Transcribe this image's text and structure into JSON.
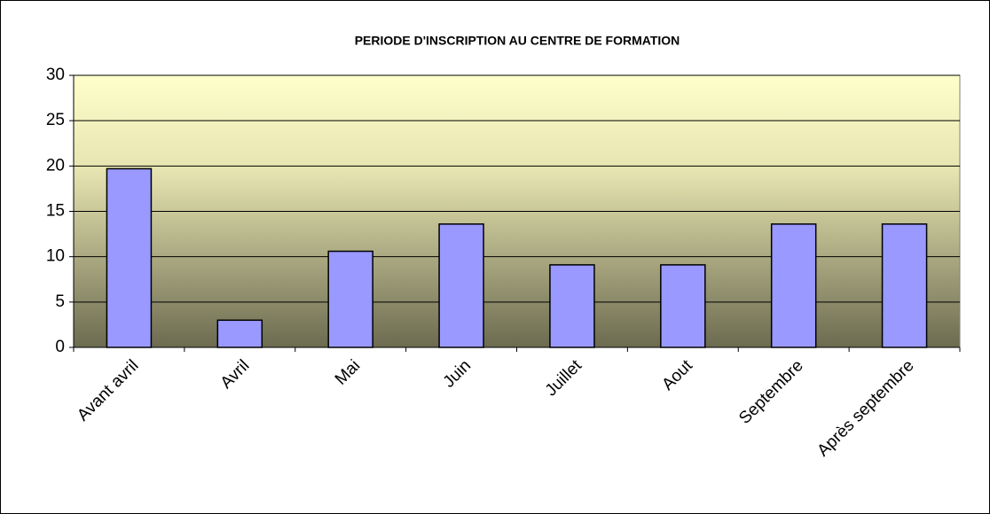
{
  "chart_data": {
    "type": "bar",
    "title": "PERIODE D'INSCRIPTION AU CENTRE DE FORMATION",
    "categories": [
      "Avant avril",
      "Avril",
      "Mai",
      "Juin",
      "Juillet",
      "Aout",
      "Septembre",
      "Après septembre"
    ],
    "values": [
      19.7,
      3,
      10.6,
      13.6,
      9.1,
      9.1,
      13.6,
      13.6
    ],
    "color": "#9999ff",
    "ylim": [
      0,
      30
    ],
    "yticks": [
      0,
      5,
      10,
      15,
      20,
      25,
      30
    ],
    "grid": true
  }
}
